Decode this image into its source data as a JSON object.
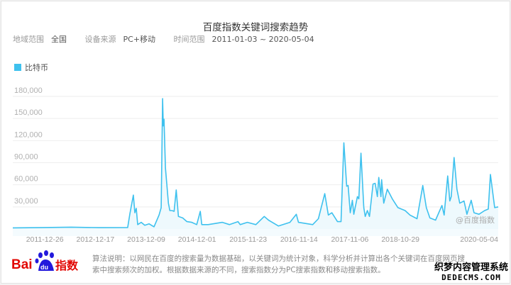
{
  "title": "百度指数关键词搜索趋势",
  "filters": [
    {
      "label": "地域范围",
      "value": "全国"
    },
    {
      "label": "设备来源",
      "value": "PC+移动"
    },
    {
      "label": "时间范围",
      "value": "2011-01-03 ~ 2020-05-04"
    }
  ],
  "colors": {
    "series": "#3ec1ee",
    "fill": "#eef9fd",
    "grid": "#eeeeee",
    "baidu_red": "#e10602",
    "baidu_blue": "#2319dc"
  },
  "chart_data": {
    "type": "area",
    "legend_position": "top-left",
    "grid": true,
    "ylim": [
      0,
      180000
    ],
    "x_range": [
      "2011-01-03",
      "2020-05-04"
    ],
    "yticks": [
      30000,
      60000,
      90000,
      120000,
      150000,
      180000
    ],
    "ytick_labels": [
      "30,000",
      "60,000",
      "90,000",
      "120,000",
      "150,000",
      "180,000"
    ],
    "xticks": [
      "2011-12-26",
      "2012-12-17",
      "2013-12-09",
      "2014-12-01",
      "2015-11-23",
      "2016-11-14",
      "2017-11-06",
      "2018-10-29",
      "2020-05-04"
    ],
    "series": [
      {
        "name": "比特币",
        "x": [
          "2011-01-03",
          "2011-07-01",
          "2012-02-16",
          "2012-09-01",
          "2013-03-20",
          "2013-04-04",
          "2013-04-29",
          "2013-05-09",
          "2013-05-19",
          "2013-05-29",
          "2013-06-23",
          "2013-07-18",
          "2013-08-17",
          "2013-09-21",
          "2013-10-26",
          "2013-11-10",
          "2013-11-20",
          "2013-11-25",
          "2013-11-30",
          "2013-12-10",
          "2013-12-31",
          "2014-01-10",
          "2014-01-25",
          "2014-02-09",
          "2014-02-24",
          "2014-03-11",
          "2014-04-10",
          "2014-05-10",
          "2014-06-13",
          "2014-07-18",
          "2014-08-12",
          "2014-08-22",
          "2014-10-06",
          "2015-01-14",
          "2015-03-05",
          "2015-05-04",
          "2015-05-19",
          "2015-07-08",
          "2015-09-06",
          "2015-11-04",
          "2015-12-04",
          "2016-02-12",
          "2016-05-02",
          "2016-06-16",
          "2016-07-01",
          "2016-10-09",
          "2016-11-18",
          "2017-01-02",
          "2017-01-27",
          "2017-02-21",
          "2017-04-01",
          "2017-04-26",
          "2017-05-16",
          "2017-06-05",
          "2017-06-15",
          "2017-06-30",
          "2017-07-15",
          "2017-07-25",
          "2017-08-19",
          "2017-08-29",
          "2017-09-13",
          "2017-10-03",
          "2017-10-13",
          "2017-10-28",
          "2017-11-12",
          "2017-12-07",
          "2017-12-22",
          "2018-01-06",
          "2018-01-16",
          "2018-01-31",
          "2018-02-05",
          "2018-02-20",
          "2018-03-17",
          "2018-04-21",
          "2018-05-31",
          "2018-07-20",
          "2018-08-23",
          "2018-10-12",
          "2018-11-21",
          "2018-12-16",
          "2019-01-10",
          "2019-02-19",
          "2019-04-05",
          "2019-04-20",
          "2019-05-15",
          "2019-05-30",
          "2019-06-09",
          "2019-06-29",
          "2019-07-19",
          "2019-08-08",
          "2019-09-07",
          "2019-09-27",
          "2019-10-27",
          "2019-11-16",
          "2019-12-21",
          "2020-01-30",
          "2020-02-24",
          "2020-03-10",
          "2020-04-09",
          "2020-05-04"
        ],
        "values": [
          1500,
          1800,
          2500,
          1800,
          2000,
          20000,
          46000,
          22000,
          28000,
          6000,
          9000,
          5000,
          7000,
          3000,
          19000,
          29000,
          177000,
          140000,
          149000,
          83000,
          35000,
          25000,
          25000,
          24000,
          53000,
          17000,
          15000,
          10000,
          9000,
          6000,
          24000,
          6000,
          6000,
          9000,
          6000,
          10000,
          6000,
          9000,
          6000,
          17000,
          12000,
          4000,
          9000,
          20000,
          9000,
          6000,
          14000,
          48000,
          19000,
          22000,
          10000,
          10000,
          117000,
          58000,
          59000,
          22000,
          39000,
          20000,
          44000,
          41000,
          103000,
          29000,
          17000,
          25000,
          17000,
          61000,
          62000,
          44000,
          70000,
          44000,
          67000,
          35000,
          54000,
          41000,
          29000,
          25000,
          19000,
          14000,
          59000,
          29000,
          15000,
          12000,
          32000,
          19000,
          72000,
          38000,
          44000,
          97000,
          54000,
          35000,
          38000,
          20000,
          39000,
          22000,
          20000,
          25000,
          27000,
          74000,
          29000,
          30000
        ]
      }
    ]
  },
  "watermark_chart": "@百度指数",
  "footer": {
    "logo_text": "Baidu指数",
    "algo_line1": "算法说明：以网民在百度的搜索量为数据基础，以关键词为统计对象，科学分析并计算出各个关键词在百度网页搜",
    "algo_line2": "索中搜索频次的加权。根据数据来源的不同，搜索指数分为PC搜索指数和移动搜索指数。"
  },
  "site_watermark": {
    "line1": "织梦内容管理系统",
    "line2": "DEDECMS.COM"
  }
}
